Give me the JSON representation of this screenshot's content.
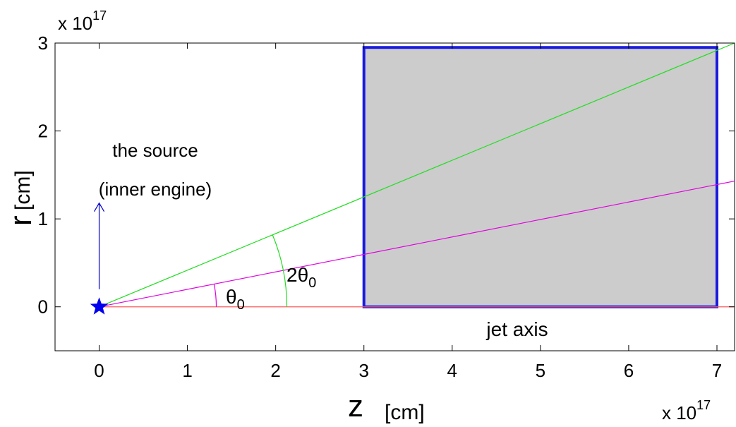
{
  "chart_data": {
    "type": "line",
    "xlim": [
      -0.5,
      7.2
    ],
    "ylim": [
      -0.5,
      3
    ],
    "xticks": [
      0,
      1,
      2,
      3,
      4,
      5,
      6,
      7
    ],
    "yticks": [
      0,
      1,
      2,
      3
    ],
    "x_tick_labels": [
      "0",
      "1",
      "2",
      "3",
      "4",
      "5",
      "6",
      "7"
    ],
    "y_tick_labels": [
      "0",
      "1",
      "2",
      "3"
    ],
    "x_exponent_label": {
      "base": "x 10",
      "exp": "17"
    },
    "y_exponent_label": {
      "base": "x 10",
      "exp": "17"
    },
    "xlabel": {
      "main": "z",
      "unit": "[cm]"
    },
    "ylabel": {
      "main": "r",
      "unit": "[cm]"
    },
    "grid": false,
    "series": [
      {
        "x": [
          0,
          7.2
        ],
        "y": [
          0,
          0
        ],
        "color": "#ff5a5a"
      },
      {
        "x": [
          0,
          7.2
        ],
        "y": [
          0,
          1.43
        ],
        "color": "#e000e0"
      },
      {
        "x": [
          0,
          7.2
        ],
        "y": [
          0,
          3.0
        ],
        "color": "#22dd22"
      }
    ],
    "shaded_region": {
      "x": [
        3,
        7
      ],
      "y": [
        0,
        2.95
      ],
      "fill": "#cccccc",
      "edge": "#1a1adf"
    },
    "source_marker": {
      "x": 0,
      "y": 0,
      "color": "#0000ee"
    },
    "arrow": {
      "x": 0,
      "y_from": 0.2,
      "y_to": 1.18,
      "color": "#0000cc"
    },
    "annotations": {
      "source_line1": "the source",
      "source_line2": "(inner engine)",
      "theta0": {
        "symbol": "θ",
        "sub": "0"
      },
      "two_theta0": {
        "prefix": "2",
        "symbol": "θ",
        "sub": "0"
      },
      "jet_axis": "jet axis"
    }
  }
}
